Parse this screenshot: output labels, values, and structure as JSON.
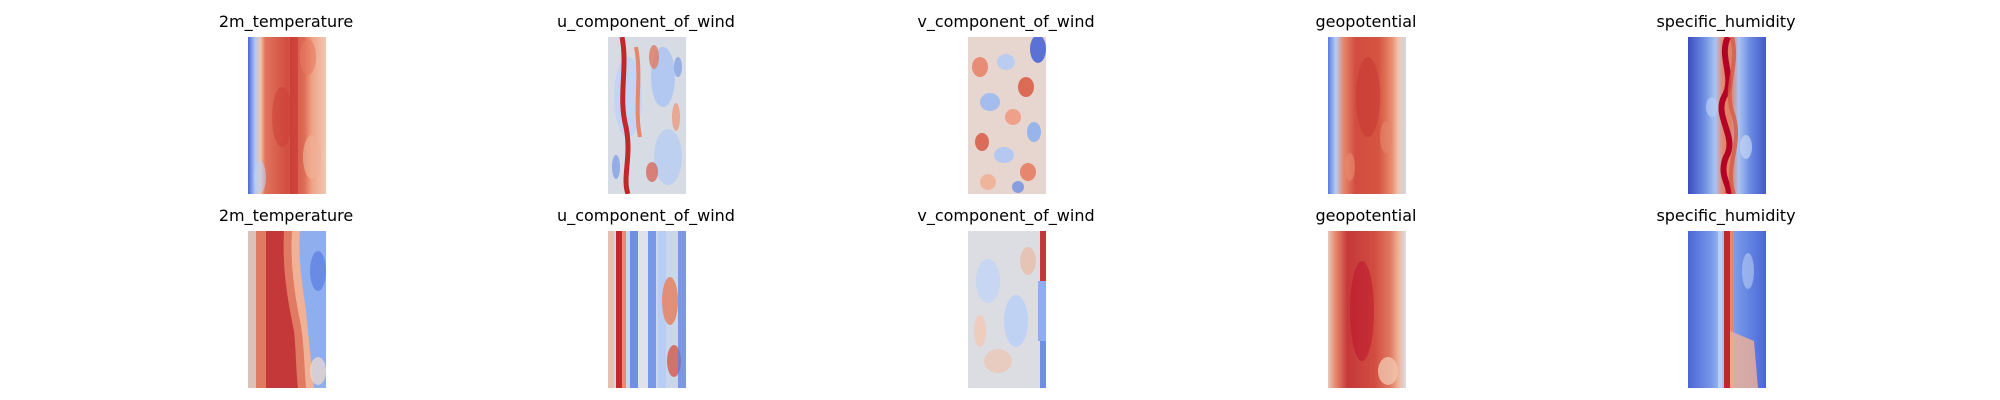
{
  "figure": {
    "layout": "2 rows x 5 columns grid of heatmaps",
    "colormap": "coolwarm",
    "axes_visible": false,
    "rows": [
      [
        "2m_temperature",
        "u_component_of_wind",
        "v_component_of_wind",
        "geopotential",
        "specific_humidity"
      ],
      [
        "2m_temperature",
        "u_component_of_wind",
        "v_component_of_wind",
        "geopotential",
        "specific_humidity"
      ]
    ]
  },
  "chart_data": [
    {
      "type": "heatmap",
      "title": "2m_temperature",
      "row": 1,
      "column": 1,
      "colormap": "coolwarm",
      "pattern": "warm central band running top to bottom, cool blue strip along the left edge, lighter warm values on the right"
    },
    {
      "type": "heatmap",
      "title": "u_component_of_wind",
      "row": 1,
      "column": 2,
      "colormap": "coolwarm",
      "pattern": "mostly neutral to cool values with a strong red streak near the left and scattered warm patches"
    },
    {
      "type": "heatmap",
      "title": "v_component_of_wind",
      "row": 1,
      "column": 3,
      "colormap": "coolwarm",
      "pattern": "noisy mixture of small red and blue patches spread evenly across the field"
    },
    {
      "type": "heatmap",
      "title": "geopotential",
      "row": 1,
      "column": 4,
      "colormap": "coolwarm",
      "pattern": "broad warm band in the center, cool blue edge on the left, pale values on the right"
    },
    {
      "type": "heatmap",
      "title": "specific_humidity",
      "row": 1,
      "column": 5,
      "colormap": "coolwarm",
      "pattern": "narrow wavy red core through the center surrounded by strong blue on both sides"
    },
    {
      "type": "heatmap",
      "title": "2m_temperature",
      "row": 2,
      "column": 1,
      "colormap": "coolwarm",
      "pattern": "warm band left of center widening in the lower half, blue region on the right"
    },
    {
      "type": "heatmap",
      "title": "u_component_of_wind",
      "row": 2,
      "column": 2,
      "colormap": "coolwarm",
      "pattern": "vertical red stripe near the left, streaky blue and pale vertical bands, warm patch on the right"
    },
    {
      "type": "heatmap",
      "title": "v_component_of_wind",
      "row": 2,
      "column": 3,
      "colormap": "coolwarm",
      "pattern": "mostly pale neutral field with faint light blue areas and a red stripe along the right edge"
    },
    {
      "type": "heatmap",
      "title": "geopotential",
      "row": 2,
      "column": 4,
      "colormap": "coolwarm",
      "pattern": "broad red vertical band filling most of the panel with pale edges"
    },
    {
      "type": "heatmap",
      "title": "specific_humidity",
      "row": 2,
      "column": 5,
      "colormap": "coolwarm",
      "pattern": "blue field with a narrow red vertical stripe right of center and a lighter warm patch at the bottom"
    }
  ]
}
